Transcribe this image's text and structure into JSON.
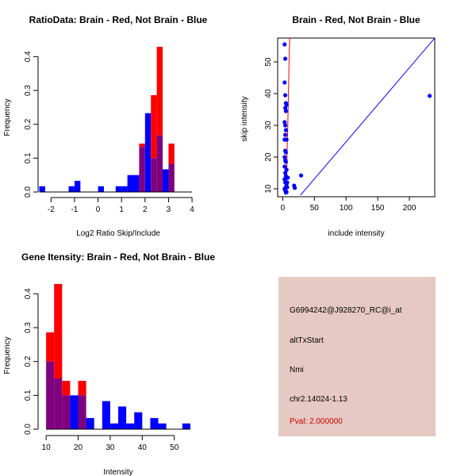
{
  "colors": {
    "red": "#ff0000",
    "blue": "#0000ff",
    "overlap": "#7f007f",
    "panel": "#e5c9c2",
    "pval": "#cc0000"
  },
  "chart_data": [
    {
      "type": "bar",
      "title": "RatioData: Brain - Red, Not Brain - Blue",
      "xlabel": "Log2 Ratio Skip/Include",
      "ylabel": "Frequency",
      "xlim": [
        -2.55,
        4.2
      ],
      "ylim": [
        0,
        0.45
      ],
      "xticks": [
        -2,
        -1,
        0,
        1,
        2,
        3,
        4
      ],
      "yticks": [
        0.0,
        0.1,
        0.2,
        0.3,
        0.4
      ],
      "bin_edges": [
        -2.5,
        -2.25,
        -2.0,
        -1.75,
        -1.5,
        -1.25,
        -1.0,
        -0.75,
        -0.5,
        -0.25,
        0.0,
        0.25,
        0.5,
        0.75,
        1.0,
        1.25,
        1.5,
        1.75,
        2.0,
        2.25,
        2.5,
        2.75,
        3.0,
        3.25,
        3.5,
        3.75,
        4.0
      ],
      "series": [
        {
          "name": "Brain",
          "color": "red",
          "values": [
            0,
            0,
            0,
            0,
            0,
            0,
            0,
            0,
            0,
            0,
            0,
            0,
            0,
            0,
            0,
            0,
            0,
            0.143,
            0,
            0.286,
            0.429,
            0,
            0.143,
            0,
            0,
            0
          ]
        },
        {
          "name": "Not Brain",
          "color": "blue",
          "values": [
            0.017,
            0,
            0,
            0,
            0,
            0.017,
            0.033,
            0,
            0,
            0,
            0.017,
            0,
            0,
            0.017,
            0.017,
            0.05,
            0.05,
            0.133,
            0.233,
            0.1,
            0.167,
            0.067,
            0.083,
            0,
            0,
            0
          ]
        }
      ]
    },
    {
      "type": "scatter",
      "title": "Brain - Red, Not Brain - Blue",
      "xlabel": "include intensity",
      "ylabel": "skip intensity",
      "xlim": [
        -8,
        240
      ],
      "ylim": [
        7.5,
        57.5
      ],
      "xticks": [
        0,
        50,
        100,
        150,
        200
      ],
      "yticks": [
        10,
        20,
        30,
        40,
        50
      ],
      "identity_line": {
        "color": "blue",
        "from": [
          28,
          8
        ],
        "to": [
          240,
          57.5
        ]
      },
      "red_curve": [
        [
          6,
          9
        ],
        [
          6.5,
          15
        ],
        [
          7,
          22
        ],
        [
          8,
          30
        ],
        [
          9,
          40
        ],
        [
          10,
          50
        ],
        [
          11,
          57.5
        ]
      ],
      "points": [
        [
          3,
          55.5
        ],
        [
          4,
          51
        ],
        [
          3,
          43.5
        ],
        [
          4,
          39.5
        ],
        [
          5,
          37
        ],
        [
          4,
          35.5
        ],
        [
          6,
          36.5
        ],
        [
          5,
          34.5
        ],
        [
          3,
          31
        ],
        [
          4,
          30
        ],
        [
          5,
          28.5
        ],
        [
          4,
          27
        ],
        [
          3,
          25.5
        ],
        [
          6,
          25.5
        ],
        [
          4,
          22
        ],
        [
          5,
          21.5
        ],
        [
          3,
          20
        ],
        [
          4,
          19
        ],
        [
          5,
          18.5
        ],
        [
          3,
          17
        ],
        [
          6,
          16
        ],
        [
          4,
          15
        ],
        [
          5,
          14
        ],
        [
          3,
          13
        ],
        [
          4,
          12
        ],
        [
          6,
          11.5
        ],
        [
          5,
          10.5
        ],
        [
          3,
          10
        ],
        [
          4,
          9.5
        ],
        [
          6,
          9
        ],
        [
          5,
          8.8
        ],
        [
          7,
          12
        ],
        [
          8,
          13.5
        ],
        [
          7,
          10.5
        ],
        [
          18,
          11
        ],
        [
          19,
          10.3
        ],
        [
          29,
          14.2
        ],
        [
          232,
          39.3
        ]
      ]
    },
    {
      "type": "bar",
      "title": "Gene Itensity: Brain - Red, Not Brain - Blue",
      "xlabel": "Intensity",
      "ylabel": "Frequency",
      "xlim": [
        7.5,
        57
      ],
      "ylim": [
        0,
        0.45
      ],
      "xticks": [
        10,
        20,
        30,
        40,
        50
      ],
      "yticks": [
        0.0,
        0.1,
        0.2,
        0.3,
        0.4
      ],
      "bin_edges": [
        10,
        12.5,
        15,
        17.5,
        20,
        22.5,
        25,
        27.5,
        30,
        32.5,
        35,
        37.5,
        40,
        42.5,
        45,
        47.5,
        50,
        52.5,
        55
      ],
      "series": [
        {
          "name": "Brain",
          "color": "red",
          "values": [
            0.286,
            0.429,
            0.143,
            0,
            0.143,
            0,
            0,
            0,
            0,
            0,
            0,
            0,
            0,
            0,
            0,
            0,
            0,
            0
          ]
        },
        {
          "name": "Not Brain",
          "color": "blue",
          "values": [
            0.2,
            0.15,
            0.1,
            0.1,
            0.1,
            0.033,
            0,
            0.083,
            0.017,
            0.067,
            0.017,
            0.05,
            0,
            0.033,
            0.017,
            0,
            0,
            0.017
          ]
        }
      ]
    }
  ],
  "info_panel": {
    "gene_id": "G6994242@J928270_RC@i_at",
    "event_type": "altTxStart",
    "label": "Nmi",
    "location": "chr2.14024-1.13",
    "pval": "Pval: 2.000000"
  }
}
